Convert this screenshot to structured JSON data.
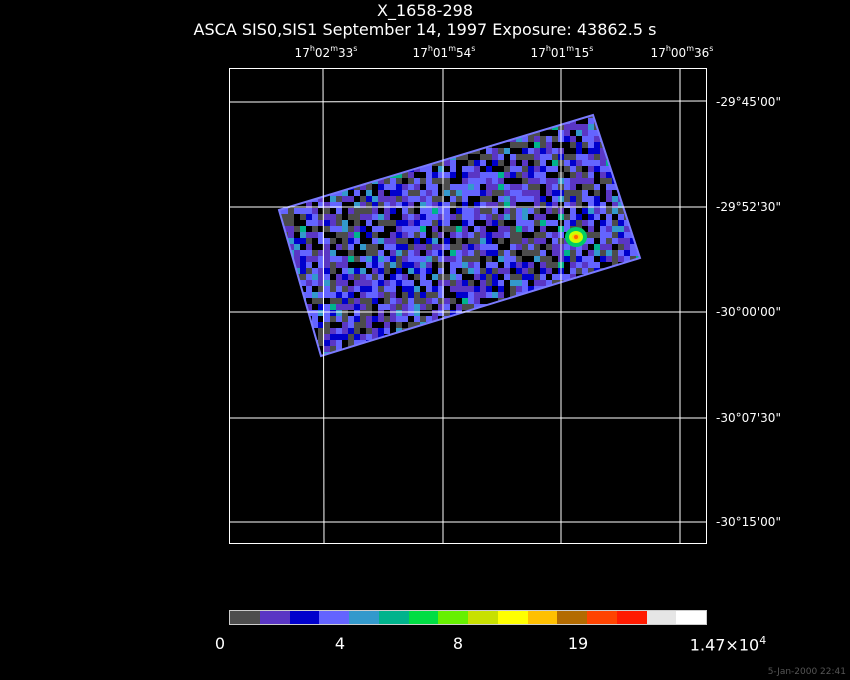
{
  "title": "X_1658-298",
  "subtitle": "ASCA SIS0,SIS1 September 14, 1997 Exposure: 43862.5 s",
  "ra_labels": [
    {
      "h": "17",
      "m": "02",
      "s": "33"
    },
    {
      "h": "17",
      "m": "01",
      "s": "54"
    },
    {
      "h": "17",
      "m": "01",
      "s": "15"
    },
    {
      "h": "17",
      "m": "00",
      "s": "36"
    }
  ],
  "dec_labels": [
    "-29°45'00\"",
    "-29°52'30\"",
    "-30°00'00\"",
    "-30°07'30\"",
    "-30°15'00\""
  ],
  "colorbar": {
    "colors": [
      "#4d4d4d",
      "#5a36c4",
      "#0000cc",
      "#6464ff",
      "#3399cc",
      "#00b38c",
      "#00dd44",
      "#66f000",
      "#c8e000",
      "#ffff00",
      "#ffc000",
      "#b36b00",
      "#ff4400",
      "#ff1a00",
      "#e6e6e6",
      "#ffffff"
    ],
    "labels": {
      "v0": "0",
      "v1": "4",
      "v2": "8",
      "v3": "19",
      "v4_base": "1.47×10",
      "v4_exp": "4"
    }
  },
  "timestamp": "5-Jan-2000 22:41"
}
